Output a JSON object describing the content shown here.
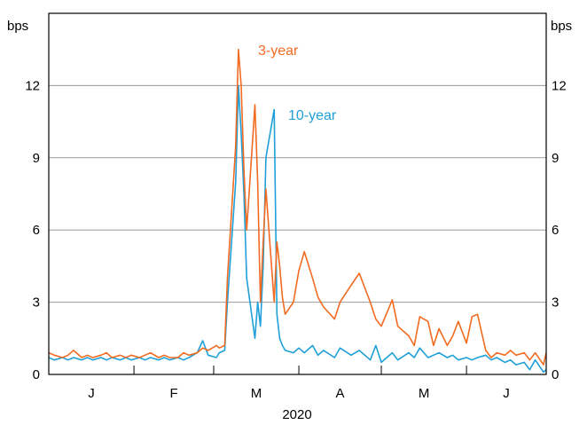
{
  "chart_data": {
    "type": "line",
    "title": "",
    "left_unit": "bps",
    "right_unit": "bps",
    "ylim": [
      0,
      15
    ],
    "yticks": [
      0,
      3,
      6,
      9,
      12
    ],
    "grid": true,
    "month_labels": [
      "J",
      "F",
      "M",
      "A",
      "M",
      "J"
    ],
    "year_label": "2020",
    "xlim": [
      "2020-01-01",
      "2020-06-30"
    ],
    "series": [
      {
        "name": "3-year",
        "color": "#F26B21",
        "points": [
          [
            "2020-01-01",
            0.9
          ],
          [
            "2020-01-03",
            0.8
          ],
          [
            "2020-01-06",
            0.7
          ],
          [
            "2020-01-08",
            0.8
          ],
          [
            "2020-01-10",
            1.0
          ],
          [
            "2020-01-13",
            0.7
          ],
          [
            "2020-01-15",
            0.8
          ],
          [
            "2020-01-17",
            0.7
          ],
          [
            "2020-01-20",
            0.8
          ],
          [
            "2020-01-22",
            0.9
          ],
          [
            "2020-01-24",
            0.7
          ],
          [
            "2020-01-27",
            0.8
          ],
          [
            "2020-01-29",
            0.7
          ],
          [
            "2020-01-31",
            0.8
          ],
          [
            "2020-02-03",
            0.7
          ],
          [
            "2020-02-05",
            0.8
          ],
          [
            "2020-02-07",
            0.9
          ],
          [
            "2020-02-10",
            0.7
          ],
          [
            "2020-02-12",
            0.8
          ],
          [
            "2020-02-14",
            0.7
          ],
          [
            "2020-02-17",
            0.7
          ],
          [
            "2020-02-19",
            0.9
          ],
          [
            "2020-02-21",
            0.8
          ],
          [
            "2020-02-24",
            0.9
          ],
          [
            "2020-02-26",
            1.1
          ],
          [
            "2020-02-28",
            1.0
          ],
          [
            "2020-03-02",
            1.2
          ],
          [
            "2020-03-03",
            1.1
          ],
          [
            "2020-03-05",
            1.2
          ],
          [
            "2020-03-06",
            4.0
          ],
          [
            "2020-03-09",
            9.5
          ],
          [
            "2020-03-10",
            13.5
          ],
          [
            "2020-03-11",
            12.0
          ],
          [
            "2020-03-12",
            8.5
          ],
          [
            "2020-03-13",
            6.0
          ],
          [
            "2020-03-16",
            11.2
          ],
          [
            "2020-03-17",
            8.0
          ],
          [
            "2020-03-18",
            3.0
          ],
          [
            "2020-03-19",
            5.5
          ],
          [
            "2020-03-20",
            7.7
          ],
          [
            "2020-03-23",
            3.0
          ],
          [
            "2020-03-24",
            5.5
          ],
          [
            "2020-03-25",
            4.5
          ],
          [
            "2020-03-26",
            3.2
          ],
          [
            "2020-03-27",
            2.5
          ],
          [
            "2020-03-30",
            3.0
          ],
          [
            "2020-04-01",
            4.3
          ],
          [
            "2020-04-03",
            5.1
          ],
          [
            "2020-04-06",
            4.0
          ],
          [
            "2020-04-08",
            3.2
          ],
          [
            "2020-04-10",
            2.8
          ],
          [
            "2020-04-14",
            2.3
          ],
          [
            "2020-04-16",
            3.0
          ],
          [
            "2020-04-20",
            3.7
          ],
          [
            "2020-04-23",
            4.2
          ],
          [
            "2020-04-27",
            3.0
          ],
          [
            "2020-04-29",
            2.3
          ],
          [
            "2020-05-01",
            2.0
          ],
          [
            "2020-05-05",
            3.1
          ],
          [
            "2020-05-07",
            2.0
          ],
          [
            "2020-05-11",
            1.6
          ],
          [
            "2020-05-13",
            1.2
          ],
          [
            "2020-05-15",
            2.4
          ],
          [
            "2020-05-18",
            2.2
          ],
          [
            "2020-05-20",
            1.2
          ],
          [
            "2020-05-22",
            1.9
          ],
          [
            "2020-05-25",
            1.2
          ],
          [
            "2020-05-27",
            1.6
          ],
          [
            "2020-05-29",
            2.2
          ],
          [
            "2020-06-01",
            1.3
          ],
          [
            "2020-06-03",
            2.4
          ],
          [
            "2020-06-05",
            2.5
          ],
          [
            "2020-06-08",
            1.0
          ],
          [
            "2020-06-10",
            0.7
          ],
          [
            "2020-06-12",
            0.9
          ],
          [
            "2020-06-15",
            0.8
          ],
          [
            "2020-06-17",
            1.0
          ],
          [
            "2020-06-19",
            0.8
          ],
          [
            "2020-06-22",
            0.9
          ],
          [
            "2020-06-24",
            0.6
          ],
          [
            "2020-06-26",
            0.9
          ],
          [
            "2020-06-29",
            0.4
          ],
          [
            "2020-06-30",
            0.9
          ]
        ]
      },
      {
        "name": "10-year",
        "color": "#1FA0D8",
        "points": [
          [
            "2020-01-01",
            0.7
          ],
          [
            "2020-01-03",
            0.6
          ],
          [
            "2020-01-06",
            0.7
          ],
          [
            "2020-01-08",
            0.6
          ],
          [
            "2020-01-10",
            0.7
          ],
          [
            "2020-01-13",
            0.6
          ],
          [
            "2020-01-15",
            0.7
          ],
          [
            "2020-01-17",
            0.6
          ],
          [
            "2020-01-20",
            0.7
          ],
          [
            "2020-01-22",
            0.6
          ],
          [
            "2020-01-24",
            0.7
          ],
          [
            "2020-01-27",
            0.6
          ],
          [
            "2020-01-29",
            0.7
          ],
          [
            "2020-01-31",
            0.6
          ],
          [
            "2020-02-03",
            0.7
          ],
          [
            "2020-02-05",
            0.6
          ],
          [
            "2020-02-07",
            0.7
          ],
          [
            "2020-02-10",
            0.6
          ],
          [
            "2020-02-12",
            0.7
          ],
          [
            "2020-02-14",
            0.6
          ],
          [
            "2020-02-17",
            0.7
          ],
          [
            "2020-02-19",
            0.6
          ],
          [
            "2020-02-21",
            0.7
          ],
          [
            "2020-02-24",
            0.9
          ],
          [
            "2020-02-26",
            1.4
          ],
          [
            "2020-02-28",
            0.8
          ],
          [
            "2020-03-02",
            0.7
          ],
          [
            "2020-03-03",
            0.9
          ],
          [
            "2020-03-05",
            1.0
          ],
          [
            "2020-03-06",
            3.0
          ],
          [
            "2020-03-09",
            8.0
          ],
          [
            "2020-03-10",
            12.0
          ],
          [
            "2020-03-11",
            10.0
          ],
          [
            "2020-03-12",
            7.5
          ],
          [
            "2020-03-13",
            4.0
          ],
          [
            "2020-03-16",
            1.5
          ],
          [
            "2020-03-17",
            3.0
          ],
          [
            "2020-03-18",
            2.0
          ],
          [
            "2020-03-19",
            4.5
          ],
          [
            "2020-03-20",
            9.0
          ],
          [
            "2020-03-23",
            11.0
          ],
          [
            "2020-03-24",
            2.5
          ],
          [
            "2020-03-25",
            1.5
          ],
          [
            "2020-03-26",
            1.2
          ],
          [
            "2020-03-27",
            1.0
          ],
          [
            "2020-03-30",
            0.9
          ],
          [
            "2020-04-01",
            1.1
          ],
          [
            "2020-04-03",
            0.9
          ],
          [
            "2020-04-06",
            1.2
          ],
          [
            "2020-04-08",
            0.8
          ],
          [
            "2020-04-10",
            1.0
          ],
          [
            "2020-04-14",
            0.7
          ],
          [
            "2020-04-16",
            1.1
          ],
          [
            "2020-04-20",
            0.8
          ],
          [
            "2020-04-23",
            1.0
          ],
          [
            "2020-04-27",
            0.6
          ],
          [
            "2020-04-29",
            1.2
          ],
          [
            "2020-05-01",
            0.5
          ],
          [
            "2020-05-05",
            0.9
          ],
          [
            "2020-05-07",
            0.6
          ],
          [
            "2020-05-11",
            0.9
          ],
          [
            "2020-05-13",
            0.7
          ],
          [
            "2020-05-15",
            1.1
          ],
          [
            "2020-05-18",
            0.7
          ],
          [
            "2020-05-20",
            0.8
          ],
          [
            "2020-05-22",
            0.9
          ],
          [
            "2020-05-25",
            0.7
          ],
          [
            "2020-05-27",
            0.8
          ],
          [
            "2020-05-29",
            0.6
          ],
          [
            "2020-06-01",
            0.7
          ],
          [
            "2020-06-03",
            0.6
          ],
          [
            "2020-06-05",
            0.7
          ],
          [
            "2020-06-08",
            0.8
          ],
          [
            "2020-06-10",
            0.6
          ],
          [
            "2020-06-12",
            0.7
          ],
          [
            "2020-06-15",
            0.5
          ],
          [
            "2020-06-17",
            0.6
          ],
          [
            "2020-06-19",
            0.4
          ],
          [
            "2020-06-22",
            0.5
          ],
          [
            "2020-06-24",
            0.2
          ],
          [
            "2020-06-26",
            0.6
          ],
          [
            "2020-06-29",
            0.1
          ],
          [
            "2020-06-30",
            0.2
          ]
        ]
      }
    ]
  }
}
